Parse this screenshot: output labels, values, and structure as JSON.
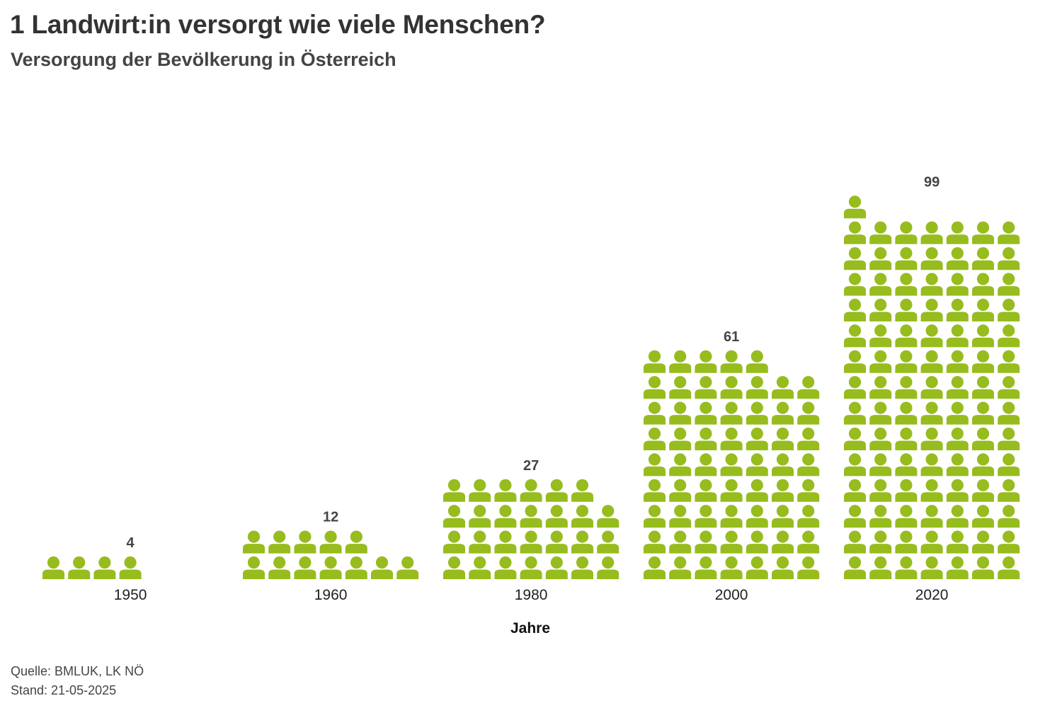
{
  "title": "1 Landwirt:in versorgt wie viele Menschen?",
  "subtitle": "Versorgung der Bevölkerung in Österreich",
  "source": {
    "line1": "Quelle: BMLUK, LK NÖ",
    "line2": "Stand: 21-05-2025"
  },
  "icon": "person-icon",
  "colors": {
    "icon": "#97BC1E",
    "value_label": "#444444",
    "tick_label": "#222222",
    "axis_label": "#111111"
  },
  "chart_data": {
    "type": "pictogram",
    "title": "1 Landwirt:in versorgt wie viele Menschen?",
    "subtitle": "Versorgung der Bevölkerung in Österreich",
    "xlabel": "Jahre",
    "ylabel": "",
    "unit": "Menschen pro Landwirt:in (1 Symbol = 1 Person)",
    "categories": [
      "1950",
      "1960",
      "1980",
      "2000",
      "2020"
    ],
    "values": [
      4,
      12,
      27,
      61,
      99
    ],
    "value_labels": [
      "4",
      "12",
      "27",
      "61",
      "99"
    ]
  }
}
